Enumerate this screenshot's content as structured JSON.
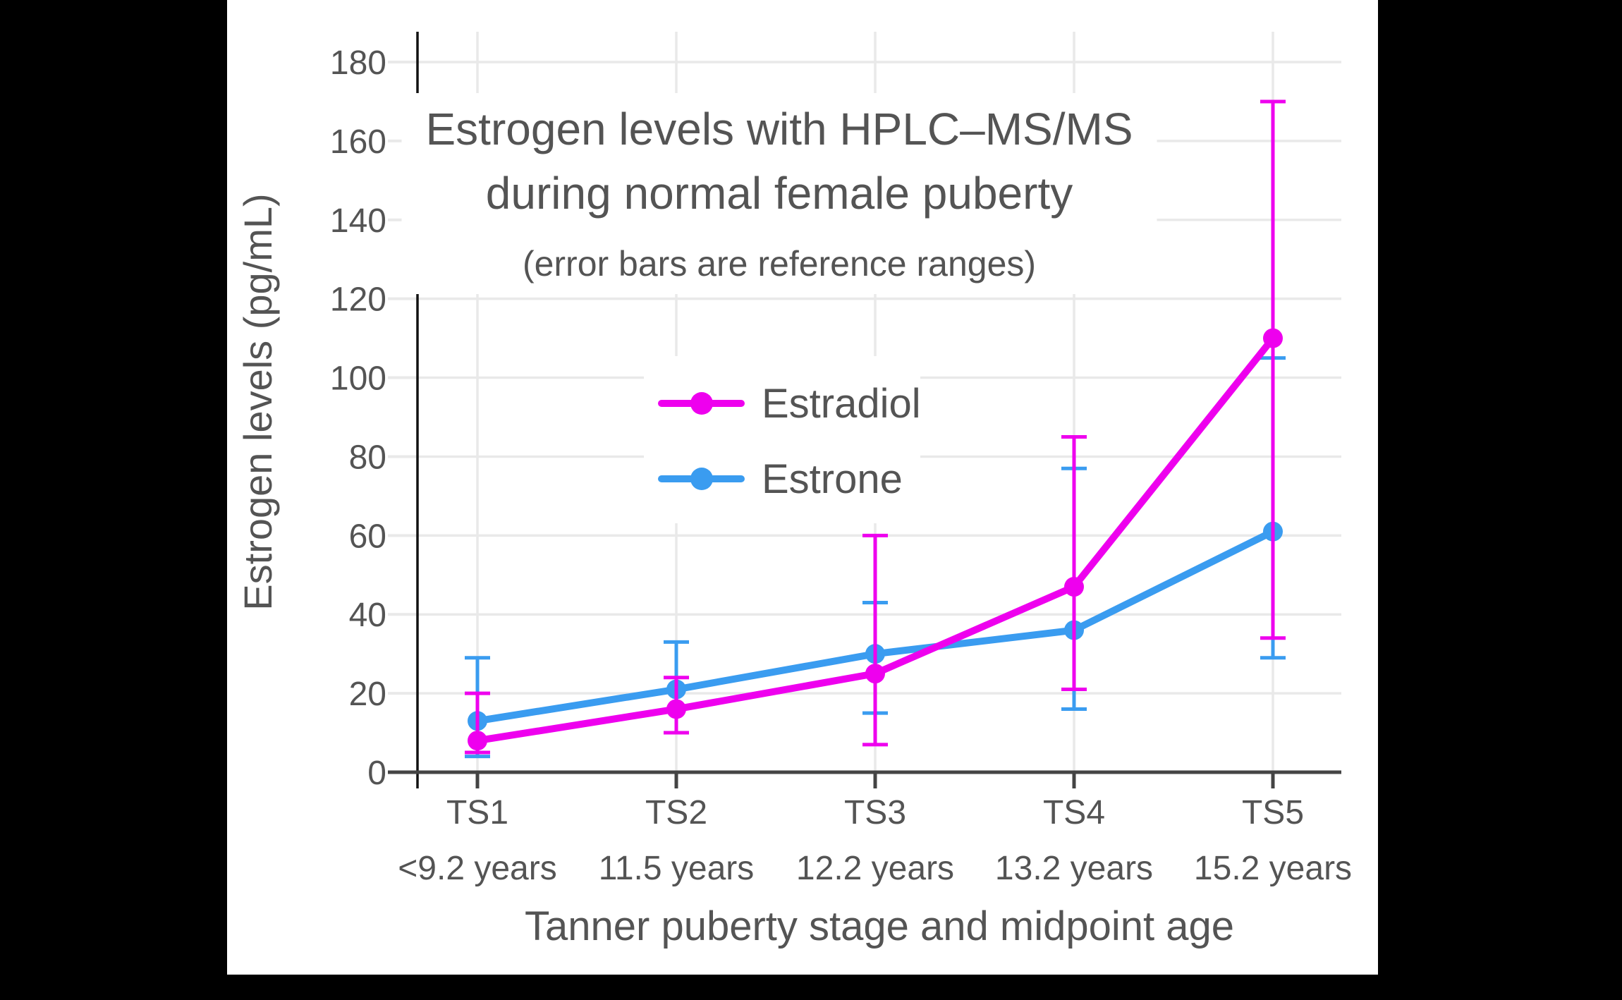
{
  "title": {
    "line1": "Estrogen levels with HPLC–MS/MS",
    "line2": "during normal female puberty",
    "subtitle": "(error bars are reference ranges)"
  },
  "legend": {
    "items": [
      {
        "label": "Estradiol",
        "color": "#EE00EE"
      },
      {
        "label": "Estrone",
        "color": "#3A9CF0"
      }
    ]
  },
  "colors": {
    "estradiol": "#EE00EE",
    "estrone": "#3A9CF0",
    "gridline": "#E9E9E9",
    "axis_line": "#444444",
    "y_spine": "#111111",
    "text": "#545454",
    "background": "#FFFFFF",
    "letterbox": "#000000"
  },
  "chart_data": {
    "type": "line",
    "title": "Estrogen levels with HPLC–MS/MS during normal female puberty",
    "subtitle": "(error bars are reference ranges)",
    "xlabel": "Tanner puberty stage and midpoint age",
    "ylabel": "Estrogen levels (pg/mL)",
    "categories": [
      "TS1",
      "TS2",
      "TS3",
      "TS4",
      "TS5"
    ],
    "category_sublabels": [
      "<9.2 years",
      "11.5 years",
      "12.2 years",
      "13.2 years",
      "15.2 years"
    ],
    "series": [
      {
        "name": "Estradiol",
        "color": "#EE00EE",
        "values": [
          8,
          16,
          25,
          47,
          110
        ],
        "error_low": [
          5,
          10,
          7,
          21,
          34
        ],
        "error_high": [
          20,
          24,
          60,
          85,
          170
        ]
      },
      {
        "name": "Estrone",
        "color": "#3A9CF0",
        "values": [
          13,
          21,
          30,
          36,
          61
        ],
        "error_low": [
          4,
          10,
          15,
          16,
          29
        ],
        "error_high": [
          29,
          33,
          43,
          77,
          105
        ]
      }
    ],
    "ylim": [
      0,
      180
    ],
    "ytick_step": 20,
    "grid": true,
    "legend_position": "inside-upper-center",
    "error_bars": "reference ranges"
  }
}
